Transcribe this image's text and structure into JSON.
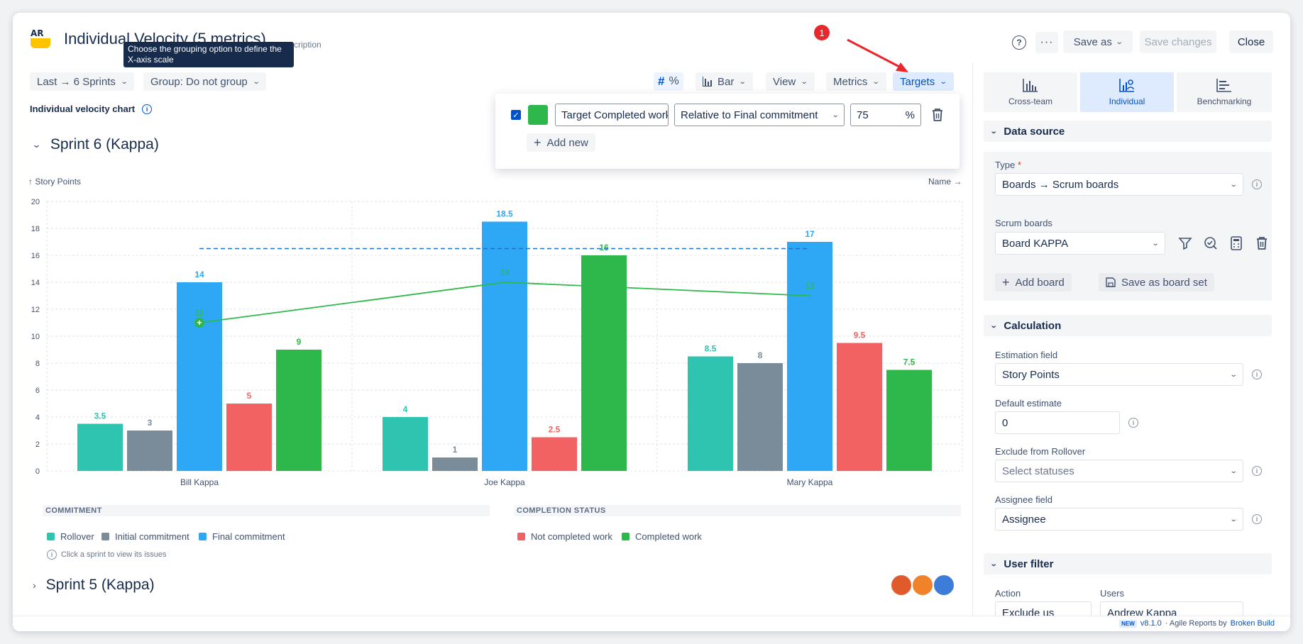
{
  "header": {
    "app_logo": "AR",
    "title": "Individual Velocity (5 metrics)",
    "description_link": "cription",
    "tooltip": "Choose the grouping option to define the X-axis scale",
    "help_icon": "question-icon",
    "more_icon": "ellipsis-icon",
    "save_as": "Save as",
    "save_changes": "Save changes",
    "close": "Close",
    "annotation_number": "1"
  },
  "toolbar": {
    "period": "Last → 6 Sprints",
    "group": "Group: Do not group",
    "hash": "#",
    "percent": "%",
    "chart_type": "Bar",
    "view": "View",
    "metrics": "Metrics",
    "targets": "Targets"
  },
  "targets_popup": {
    "checked": true,
    "color": "#2eb84c",
    "name": "Target Completed work",
    "relative_to": "Relative to Final commitment",
    "value": "75",
    "unit": "%",
    "add_new": "Add new"
  },
  "chart_label": "Individual velocity chart",
  "sprint6": {
    "title": "Sprint 6 (Kappa)",
    "y_axis_label": "↑ Story Points",
    "x_sort_label": "Name →",
    "hint": "Click a sprint to view its issues"
  },
  "sprint5": {
    "title": "Sprint 5 (Kappa)"
  },
  "chart_data": {
    "type": "bar",
    "title": "Individual velocity chart",
    "ylabel": "Story Points",
    "xlabel": "Name",
    "ylim": [
      0,
      20
    ],
    "y_ticks": [
      0,
      2,
      4,
      6,
      8,
      10,
      12,
      14,
      16,
      18,
      20
    ],
    "categories": [
      "Bill Kappa",
      "Joe Kappa",
      "Mary Kappa"
    ],
    "series": [
      {
        "name": "Rollover",
        "color": "#2ec4b0",
        "values": [
          3.5,
          4,
          8.5
        ],
        "labels": [
          "3.5",
          "4",
          "8.5"
        ]
      },
      {
        "name": "Initial commitment",
        "color": "#7a8c99",
        "values": [
          3,
          1,
          8
        ],
        "labels": [
          "3",
          "1",
          "8"
        ]
      },
      {
        "name": "Final commitment",
        "color": "#2ea8f5",
        "values": [
          14,
          18.5,
          17
        ],
        "labels": [
          "14",
          "18.5",
          "17"
        ]
      },
      {
        "name": "Not completed work",
        "color": "#f26262",
        "values": [
          5,
          2.5,
          9.5
        ],
        "labels": [
          "5",
          "2.5",
          "9.5"
        ]
      },
      {
        "name": "Completed work",
        "color": "#2eb84c",
        "values": [
          9,
          16,
          7.5
        ],
        "labels": [
          "9",
          "16",
          "7.5"
        ]
      }
    ],
    "target_line": {
      "name": "Target Completed work",
      "color": "#2eb84c",
      "values": [
        11,
        14,
        13
      ],
      "labels": [
        "11",
        "14",
        "13"
      ]
    },
    "dashed_line": {
      "color": "#1a73c8",
      "value": 16.5,
      "label": "16.5"
    },
    "grid": true
  },
  "legend": {
    "commitment_title": "COMMITMENT",
    "completion_title": "COMPLETION STATUS",
    "rollover": "Rollover",
    "initial": "Initial commitment",
    "final": "Final commitment",
    "not_completed": "Not completed work",
    "completed": "Completed work"
  },
  "sidebar": {
    "tabs": [
      {
        "label": "Cross-team"
      },
      {
        "label": "Individual"
      },
      {
        "label": "Benchmarking"
      }
    ],
    "data_source": {
      "title": "Data source",
      "type_label": "Type",
      "required_mark": "*",
      "type_value": "Boards → Scrum boards",
      "boards_label": "Scrum boards",
      "board_value": "Board KAPPA",
      "add_board": "Add board",
      "save_board_set": "Save as board set"
    },
    "calculation": {
      "title": "Calculation",
      "estimation_label": "Estimation field",
      "estimation_value": "Story Points",
      "default_label": "Default estimate",
      "default_value": "0",
      "exclude_label": "Exclude from Rollover",
      "exclude_placeholder": "Select statuses",
      "assignee_label": "Assignee field",
      "assignee_value": "Assignee"
    },
    "user_filter": {
      "title": "User filter",
      "action_label": "Action",
      "action_value": "Exclude us",
      "users_label": "Users",
      "users_value": "Andrew Kappa"
    }
  },
  "footer": {
    "badge": "NEW",
    "version": "v8.1.0",
    "middle": "· Agile Reports by",
    "vendor": "Broken Build"
  }
}
